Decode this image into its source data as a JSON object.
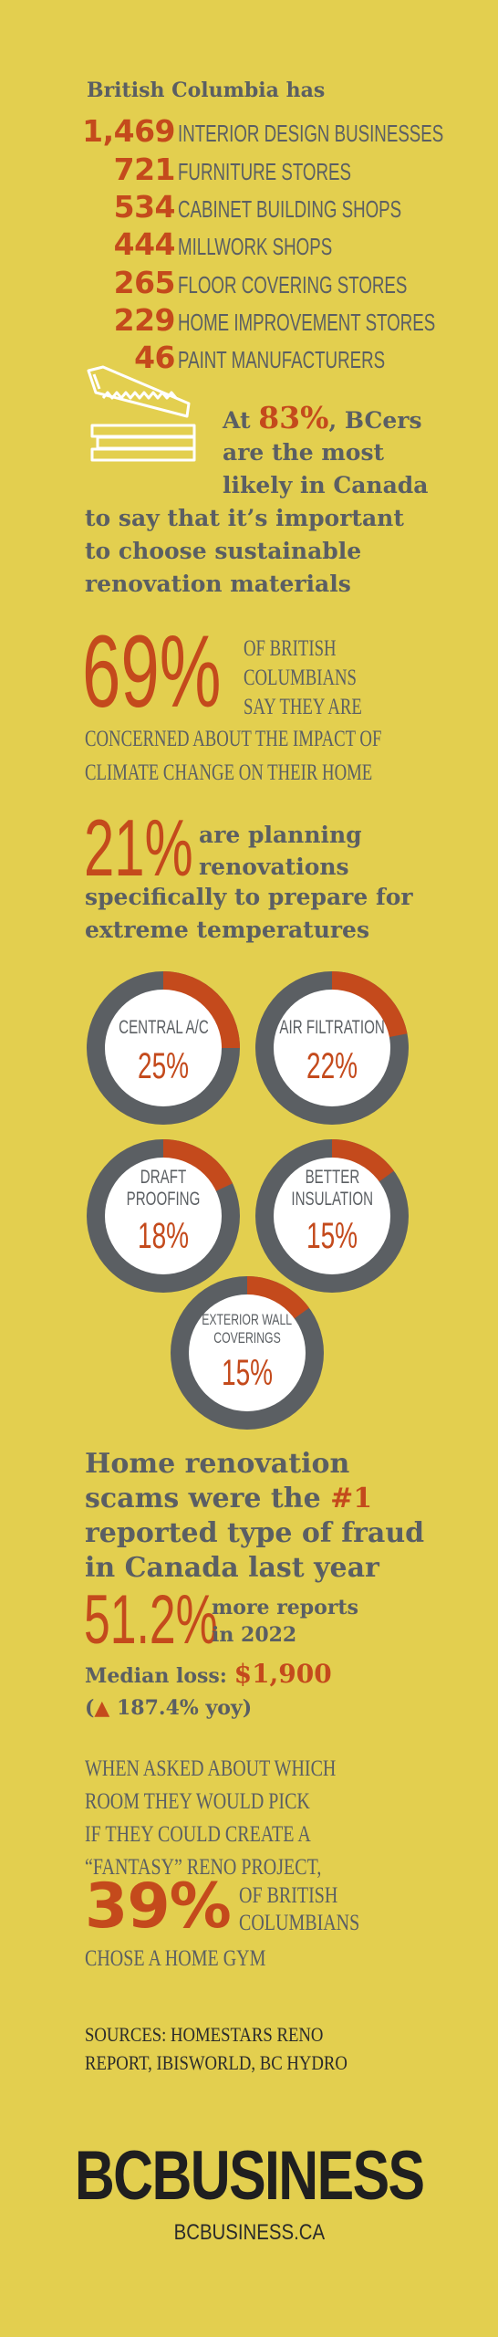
{
  "intro": "British Columbia has",
  "stats": [
    {
      "value": "1,469",
      "label": "INTERIOR DESIGN BUSINESSES"
    },
    {
      "value": "721",
      "label": "FURNITURE STORES"
    },
    {
      "value": "534",
      "label": "CABINET BUILDING SHOPS"
    },
    {
      "value": "444",
      "label": "MILLWORK SHOPS"
    },
    {
      "value": "265",
      "label": "FLOOR COVERING STORES"
    },
    {
      "value": "229",
      "label": "HOME IMPROVEMENT STORES"
    },
    {
      "value": "46",
      "label": "PAINT MANUFACTURERS"
    }
  ],
  "sustainable": {
    "prefix": "At ",
    "percent": "83%",
    "line1_rest": ", BCers",
    "line2": "are the most",
    "line3": "likely in Canada",
    "line4": "to say that it’s important",
    "line5": "to choose sustainable",
    "line6": "renovation materials",
    "icon": "saw-and-lumber-icon"
  },
  "climate": {
    "percent": "69%",
    "side_lines": [
      "OF BRITISH",
      "COLUMBIANS",
      "SAY THEY ARE"
    ],
    "below_lines": [
      "CONCERNED ABOUT THE IMPACT OF",
      "CLIMATE CHANGE ON THEIR HOME"
    ]
  },
  "planning": {
    "percent": "21%",
    "side_lines": [
      "are planning",
      "renovations"
    ],
    "below_lines": [
      "specifically to prepare for",
      "extreme temperatures"
    ]
  },
  "donuts": [
    {
      "label_lines": [
        "CENTRAL A/C"
      ],
      "value": "25%",
      "fraction": 0.25
    },
    {
      "label_lines": [
        "AIR FILTRATION"
      ],
      "value": "22%",
      "fraction": 0.22
    },
    {
      "label_lines": [
        "DRAFT",
        "PROOFING"
      ],
      "value": "18%",
      "fraction": 0.18
    },
    {
      "label_lines": [
        "BETTER",
        "INSULATION"
      ],
      "value": "15%",
      "fraction": 0.15
    },
    {
      "label_lines": [
        "EXTERIOR WALL",
        "COVERINGS"
      ],
      "value": "15%",
      "fraction": 0.15
    }
  ],
  "donut_colors": {
    "ring": "#5b5f63",
    "fill": "#c44a1c",
    "inner": "#ffffff"
  },
  "scams": {
    "line1": "Home renovation",
    "line2_pre": "scams were the ",
    "line2_hl": "#1",
    "line3": "reported type of fraud",
    "line4": "in Canada last year",
    "reports_percent": "51.2%",
    "reports_lines": [
      "more reports",
      "in 2022"
    ],
    "median_label": "Median loss: ",
    "median_value": "$1,900",
    "yoy_open": "(",
    "yoy_arrow": "🠕",
    "yoy_text": " 187.4% yoy)"
  },
  "fantasy": {
    "lines": [
      "WHEN ASKED ABOUT WHICH",
      "ROOM THEY WOULD PICK",
      "IF THEY COULD CREATE A",
      "“FANTASY” RENO PROJECT,"
    ],
    "percent": "39%",
    "side_lines": [
      "OF BRITISH",
      "COLUMBIANS"
    ],
    "below": "CHOSE A HOME GYM"
  },
  "sources": [
    "SOURCES: HOMESTARS RENO",
    "REPORT, IBISWORLD, BC HYDRO"
  ],
  "brand": {
    "logo": "BCBUSINESS",
    "site": "BCBUSINESS.CA"
  },
  "colors": {
    "background": "#e3cf4f",
    "accent": "#c44a1c",
    "text": "#5b5f63"
  }
}
